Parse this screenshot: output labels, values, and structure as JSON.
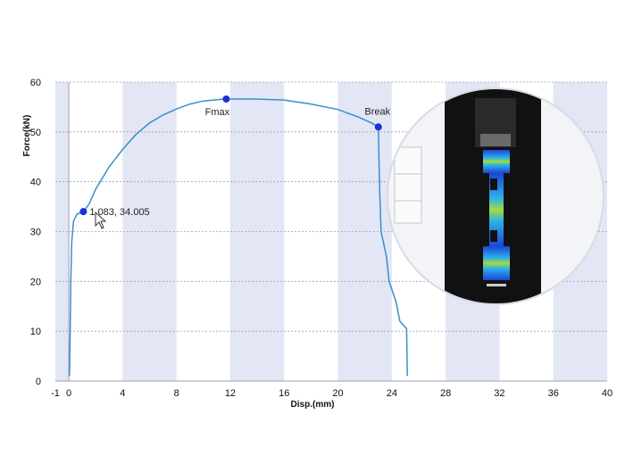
{
  "chart_data": {
    "type": "line",
    "xlabel": "Disp.(mm)",
    "ylabel": "Force(kN)",
    "xlim": [
      -1,
      40
    ],
    "ylim": [
      0,
      60
    ],
    "x_ticks": [
      -1,
      0,
      4,
      8,
      12,
      16,
      20,
      24,
      28,
      32,
      36,
      40
    ],
    "y_ticks": [
      0,
      10,
      20,
      30,
      40,
      50,
      60
    ],
    "grid": true,
    "series": [
      {
        "color": "#3a8fc8",
        "points": [
          [
            0.05,
            1.0
          ],
          [
            0.1,
            10
          ],
          [
            0.15,
            20
          ],
          [
            0.22,
            28
          ],
          [
            0.35,
            32
          ],
          [
            0.6,
            33.5
          ],
          [
            1.083,
            34.005
          ],
          [
            1.5,
            35.5
          ],
          [
            2.0,
            38.5
          ],
          [
            3.0,
            43
          ],
          [
            4.0,
            46.5
          ],
          [
            5.0,
            49.5
          ],
          [
            6.0,
            51.8
          ],
          [
            7.0,
            53.4
          ],
          [
            8.0,
            54.6
          ],
          [
            9.0,
            55.6
          ],
          [
            10.0,
            56.2
          ],
          [
            11.5,
            56.6
          ],
          [
            14.0,
            56.6
          ],
          [
            16.0,
            56.4
          ],
          [
            18.0,
            55.6
          ],
          [
            20.0,
            54.5
          ],
          [
            21.5,
            53.0
          ],
          [
            22.5,
            51.8
          ],
          [
            23.0,
            51.0
          ],
          [
            23.05,
            44
          ],
          [
            23.1,
            38
          ],
          [
            23.2,
            30
          ],
          [
            23.6,
            25
          ],
          [
            23.8,
            20
          ],
          [
            24.3,
            16
          ],
          [
            24.6,
            12
          ],
          [
            25.1,
            10.5
          ],
          [
            25.15,
            1.0
          ]
        ]
      }
    ],
    "markers": [
      {
        "x": 1.083,
        "y": 34.005,
        "label": "1.083, 34.005"
      },
      {
        "x": 11.7,
        "y": 56.6,
        "label": "Fmax"
      },
      {
        "x": 23.0,
        "y": 51.0,
        "label": "Break"
      }
    ],
    "band_color": "#e3e6f4",
    "marker_color": "#1a2fd6"
  }
}
